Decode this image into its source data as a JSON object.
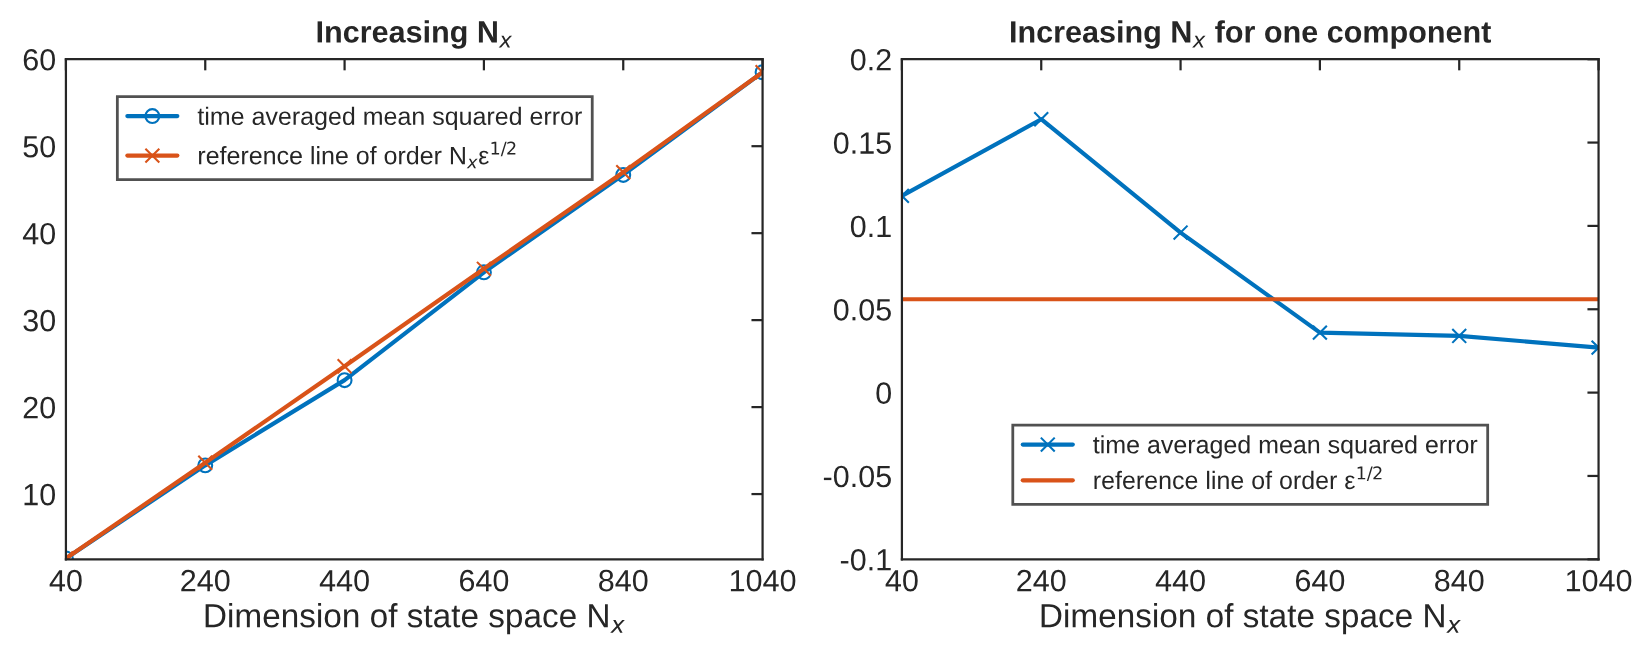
{
  "chart_data": [
    {
      "type": "line",
      "title": "Increasing N$_{x}$",
      "xlabel": "Dimension of state space N$_{x}$",
      "x": [
        40,
        240,
        440,
        640,
        840,
        1040
      ],
      "series": [
        {
          "name": "time averaged mean squared error",
          "color": "#0072bd",
          "marker": "circle",
          "values": [
            2.6,
            13.3,
            23.1,
            35.5,
            46.7,
            58.5
          ]
        },
        {
          "name": "reference line of order N$_{x}$ε$^{1/2}$",
          "color": "#d95319",
          "marker": "cross",
          "values": [
            2.6,
            13.6,
            24.7,
            35.9,
            47.0,
            58.5
          ]
        }
      ],
      "xlim": [
        40,
        1040
      ],
      "xticks": [
        40,
        240,
        440,
        640,
        840,
        1040
      ],
      "ylim": [
        2.5,
        60
      ],
      "yticks": [
        10,
        20,
        30,
        40,
        50,
        60
      ],
      "grid": false,
      "legend": "top left"
    },
    {
      "type": "line",
      "title": "Increasing N$_{x}$ for one component",
      "xlabel": "Dimension of state space N$_{x}$",
      "x": [
        40,
        240,
        440,
        640,
        840,
        1040
      ],
      "series": [
        {
          "name": "time averaged mean squared error",
          "color": "#0072bd",
          "marker": "cross",
          "values": [
            0.118,
            0.164,
            0.096,
            0.036,
            0.034,
            0.027
          ]
        },
        {
          "name": "reference line of order ε$^{1/2}$",
          "color": "#d95319",
          "marker": "none",
          "x": [
            40,
            1040
          ],
          "values": [
            0.056,
            0.056
          ]
        }
      ],
      "xlim": [
        40,
        1040
      ],
      "xticks": [
        40,
        240,
        440,
        640,
        840,
        1040
      ],
      "ylim": [
        -0.1,
        0.2
      ],
      "yticks": [
        {
          "value": -0.1,
          "label": "-0.1"
        },
        {
          "value": -0.05,
          "label": "-0.05"
        },
        0,
        0.05,
        0.1,
        0.15,
        0.2
      ],
      "grid": false,
      "legend": "bottom"
    }
  ]
}
